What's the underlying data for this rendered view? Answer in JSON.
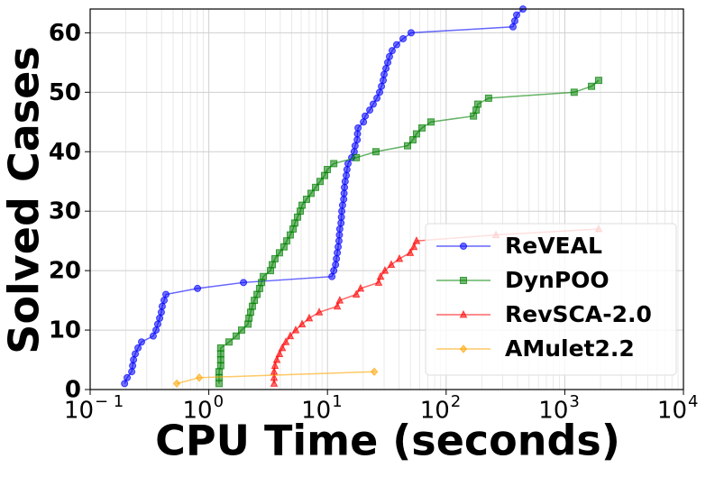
{
  "chart_data": {
    "type": "line",
    "xlabel": "CPU Time (seconds)",
    "ylabel": "Solved Cases",
    "xscale": "log",
    "xlim": [
      0.1,
      10000
    ],
    "ylim": [
      0,
      64
    ],
    "xticks": [
      {
        "value": 0.1,
        "label": "10",
        "exponent": "− 1"
      },
      {
        "value": 1,
        "label": "10",
        "exponent": "0"
      },
      {
        "value": 10,
        "label": "10",
        "exponent": "1"
      },
      {
        "value": 100,
        "label": "10",
        "exponent": "2"
      },
      {
        "value": 1000,
        "label": "10",
        "exponent": "3"
      },
      {
        "value": 10000,
        "label": "10",
        "exponent": "4"
      }
    ],
    "yticks": [
      0,
      10,
      20,
      30,
      40,
      50,
      60
    ],
    "grid": true,
    "legend": "lower right",
    "series": [
      {
        "name": "ReVEAL",
        "color": "blue",
        "marker": "circle",
        "x": [
          0.195,
          0.205,
          0.224,
          0.228,
          0.232,
          0.24,
          0.253,
          0.271,
          0.34,
          0.359,
          0.371,
          0.385,
          0.398,
          0.405,
          0.42,
          0.435,
          0.803,
          1.96,
          10.9,
          11.3,
          11.7,
          11.9,
          12.1,
          12.3,
          12.5,
          12.6,
          12.7,
          13.0,
          13.1,
          13.2,
          13.4,
          13.7,
          13.8,
          13.9,
          14.1,
          14.4,
          14.6,
          14.9,
          16.0,
          16.8,
          17.1,
          17.8,
          17.9,
          18.1,
          20.1,
          20.8,
          22.7,
          24.3,
          26.1,
          27.5,
          28.5,
          29.5,
          30.0,
          31.1,
          32.2,
          33.3,
          35.1,
          38.3,
          43.4,
          50.7,
          366,
          379,
          393,
          444
        ],
        "values": [
          1,
          2,
          3,
          4,
          5,
          6,
          7,
          8,
          9,
          10,
          11,
          12,
          13,
          14,
          15,
          16,
          17,
          18,
          19,
          20,
          21,
          22,
          23,
          24,
          25,
          26,
          27,
          28,
          29,
          30,
          31,
          32,
          33,
          34,
          35,
          36,
          37,
          38,
          39,
          40,
          41,
          42,
          43,
          44,
          45,
          46,
          47,
          48,
          49,
          50,
          51,
          52,
          53,
          54,
          55,
          56,
          57,
          58,
          59,
          60,
          61,
          62,
          63,
          64
        ]
      },
      {
        "name": "DynPOO",
        "color": "green",
        "marker": "square",
        "x": [
          1.22,
          1.22,
          1.22,
          1.26,
          1.26,
          1.26,
          1.26,
          1.48,
          1.7,
          1.89,
          2.14,
          2.18,
          2.25,
          2.33,
          2.42,
          2.55,
          2.68,
          2.78,
          2.88,
          3.31,
          3.43,
          3.61,
          3.94,
          4.3,
          4.54,
          4.86,
          5.13,
          5.31,
          5.59,
          5.9,
          6.11,
          6.66,
          7.27,
          7.94,
          8.67,
          9.46,
          9.97,
          11.3,
          17.5,
          25.6,
          47.3,
          52.5,
          56.3,
          62.6,
          74.5,
          170,
          179,
          185,
          228,
          1200,
          1680,
          1930
        ],
        "values": [
          1,
          2,
          3,
          4,
          5,
          6,
          7,
          8,
          9,
          10,
          11,
          12,
          13,
          14,
          15,
          16,
          17,
          18,
          19,
          20,
          21,
          22,
          23,
          24,
          25,
          26,
          27,
          28,
          29,
          30,
          31,
          32,
          33,
          34,
          35,
          36,
          37,
          38,
          39,
          40,
          41,
          42,
          43,
          44,
          45,
          46,
          47,
          48,
          49,
          50,
          51,
          52
        ]
      },
      {
        "name": "RevSCA-2.0",
        "color": "red",
        "marker": "triangle",
        "x": [
          3.55,
          3.55,
          3.55,
          3.61,
          3.74,
          3.94,
          4.16,
          4.46,
          4.86,
          5.4,
          6.11,
          7.02,
          8.52,
          12.1,
          12.7,
          17.5,
          19.0,
          27.0,
          28.0,
          30.5,
          34.5,
          40.4,
          49.8,
          53.5,
          56.3,
          263,
          1930
        ],
        "values": [
          1,
          2,
          3,
          4,
          5,
          6,
          7,
          8,
          9,
          10,
          11,
          12,
          13,
          14,
          15,
          16,
          17,
          18,
          19,
          20,
          21,
          22,
          23,
          24,
          25,
          26,
          27
        ]
      },
      {
        "name": "AMulet2.2",
        "color": "orange",
        "marker": "diamond",
        "x": [
          0.537,
          0.831,
          24.8
        ],
        "values": [
          1,
          2,
          3
        ]
      }
    ]
  }
}
